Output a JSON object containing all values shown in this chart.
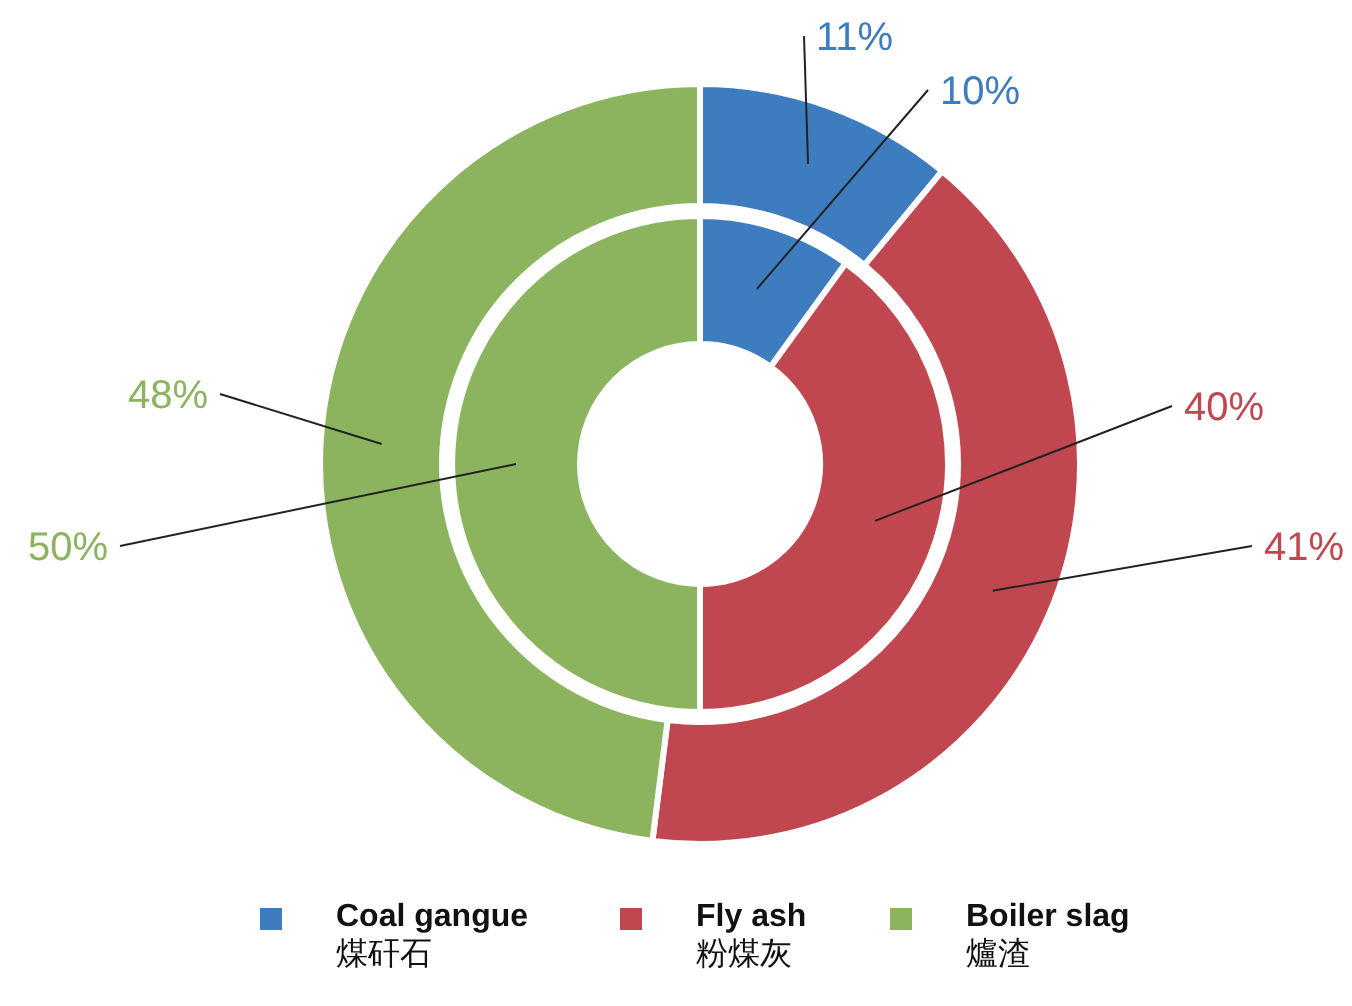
{
  "chart_data": {
    "type": "donut",
    "categories": [
      "Coal gangue\n煤矸石",
      "Fly ash\n粉煤灰",
      "Boiler slag\n爐渣"
    ],
    "colors": [
      "#3d7dbf",
      "#c0474f",
      "#8cb35e"
    ],
    "series": [
      {
        "values": [
          11,
          41,
          48
        ],
        "value_labels": [
          "11%",
          "41%",
          "48%"
        ]
      },
      {
        "values": [
          10,
          40,
          50
        ],
        "value_labels": [
          "10%",
          "40%",
          "50%"
        ]
      }
    ],
    "legend": "bottom"
  }
}
